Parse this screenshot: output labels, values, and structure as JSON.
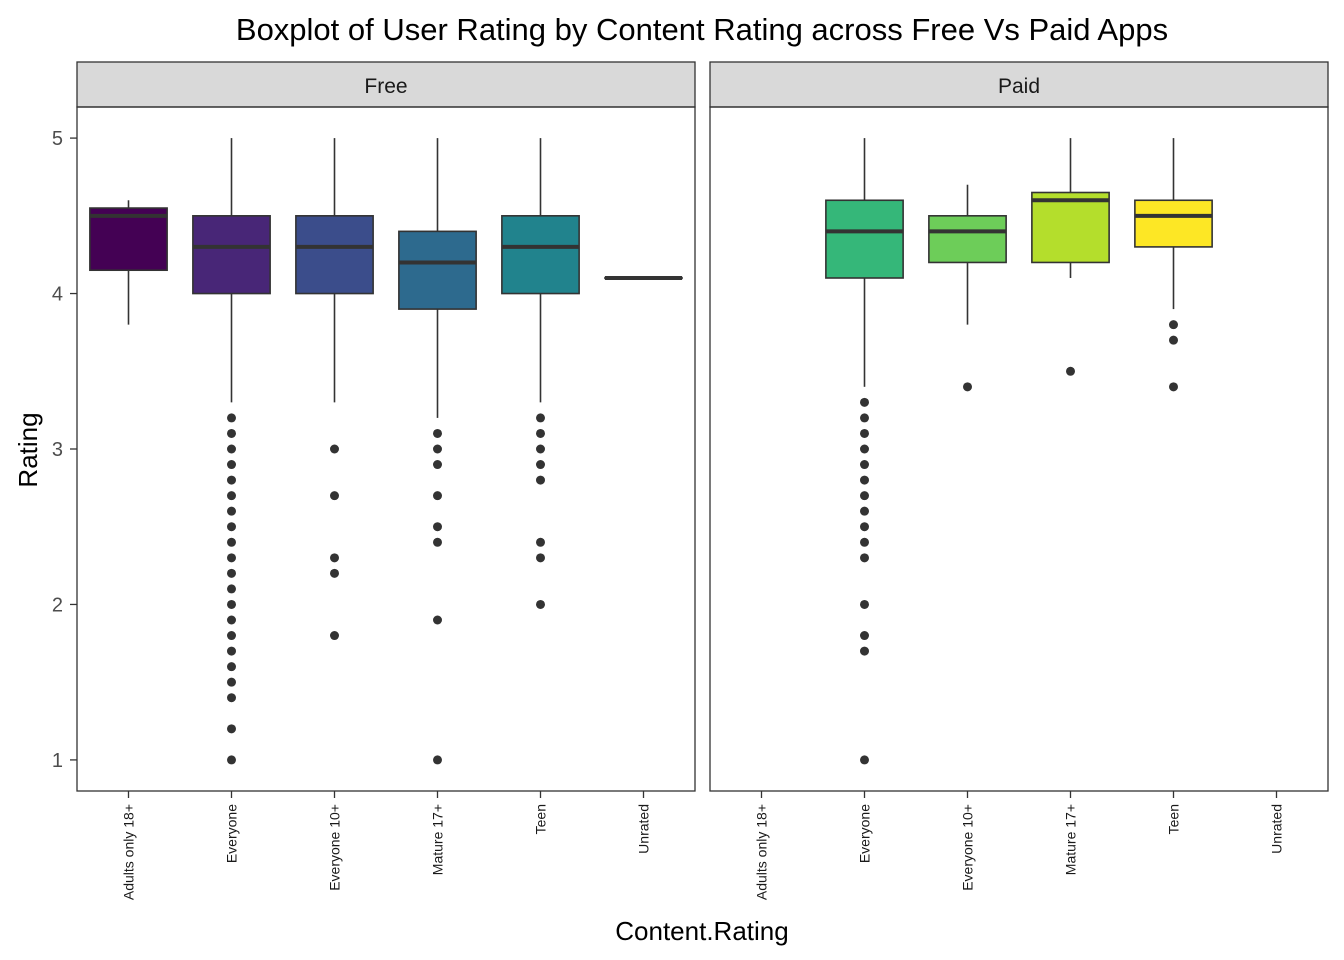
{
  "chart_data": {
    "type": "boxplot",
    "title": "Boxplot of User Rating by Content Rating across Free Vs Paid Apps",
    "xlabel": "Content.Rating",
    "ylabel": "Rating",
    "ylim": [
      0.8,
      5.2
    ],
    "yticks": [
      1,
      2,
      3,
      4,
      5
    ],
    "categories": [
      "Adults only 18+",
      "Everyone",
      "Everyone 10+",
      "Mature 17+",
      "Teen",
      "Unrated"
    ],
    "colors": {
      "Adults only 18+": "#440154",
      "Everyone": "#482677",
      "Everyone 10+": "#3B4D8B",
      "Mature 17+": "#2D6A8E",
      "Teen": "#21838D",
      "Unrated": "#1F9E89"
    },
    "paid_colors": {
      "Everyone": "#35B779",
      "Everyone 10+": "#6DCD59",
      "Mature 17+": "#B4DE2C",
      "Teen": "#FDE725"
    },
    "panels": [
      {
        "name": "Free",
        "boxes": [
          {
            "category": "Adults only 18+",
            "q1": 4.15,
            "median": 4.5,
            "q3": 4.55,
            "whisker_low": 3.8,
            "whisker_high": 4.6,
            "outliers": []
          },
          {
            "category": "Everyone",
            "q1": 4.0,
            "median": 4.3,
            "q3": 4.5,
            "whisker_low": 3.3,
            "whisker_high": 5.0,
            "outliers": [
              3.2,
              3.1,
              3.0,
              2.9,
              2.8,
              2.7,
              2.6,
              2.5,
              2.4,
              2.3,
              2.2,
              2.1,
              2.0,
              1.9,
              1.8,
              1.7,
              1.6,
              1.5,
              1.4,
              1.2,
              1.0
            ]
          },
          {
            "category": "Everyone 10+",
            "q1": 4.0,
            "median": 4.3,
            "q3": 4.5,
            "whisker_low": 3.3,
            "whisker_high": 5.0,
            "outliers": [
              3.0,
              2.7,
              2.3,
              2.2,
              1.8
            ]
          },
          {
            "category": "Mature 17+",
            "q1": 3.9,
            "median": 4.2,
            "q3": 4.4,
            "whisker_low": 3.2,
            "whisker_high": 5.0,
            "outliers": [
              3.1,
              3.0,
              2.9,
              2.7,
              2.5,
              2.4,
              1.9,
              1.0
            ]
          },
          {
            "category": "Teen",
            "q1": 4.0,
            "median": 4.3,
            "q3": 4.5,
            "whisker_low": 3.3,
            "whisker_high": 5.0,
            "outliers": [
              3.2,
              3.1,
              3.0,
              2.9,
              2.8,
              2.4,
              2.3,
              2.0
            ]
          },
          {
            "category": "Unrated",
            "q1": 4.1,
            "median": 4.1,
            "q3": 4.1,
            "whisker_low": 4.1,
            "whisker_high": 4.1,
            "outliers": []
          }
        ]
      },
      {
        "name": "Paid",
        "boxes": [
          {
            "category": "Everyone",
            "q1": 4.1,
            "median": 4.4,
            "q3": 4.6,
            "whisker_low": 3.4,
            "whisker_high": 5.0,
            "outliers": [
              3.3,
              3.2,
              3.1,
              3.0,
              2.9,
              2.8,
              2.7,
              2.6,
              2.5,
              2.4,
              2.3,
              2.0,
              1.8,
              1.7,
              1.0
            ]
          },
          {
            "category": "Everyone 10+",
            "q1": 4.2,
            "median": 4.4,
            "q3": 4.5,
            "whisker_low": 3.8,
            "whisker_high": 4.7,
            "outliers": [
              3.4
            ]
          },
          {
            "category": "Mature 17+",
            "q1": 4.2,
            "median": 4.6,
            "q3": 4.65,
            "whisker_low": 4.1,
            "whisker_high": 5.0,
            "outliers": [
              3.5
            ]
          },
          {
            "category": "Teen",
            "q1": 4.3,
            "median": 4.5,
            "q3": 4.6,
            "whisker_low": 3.9,
            "whisker_high": 5.0,
            "outliers": [
              3.8,
              3.7,
              3.4
            ]
          }
        ]
      }
    ],
    "grid": false,
    "legend": "none"
  }
}
